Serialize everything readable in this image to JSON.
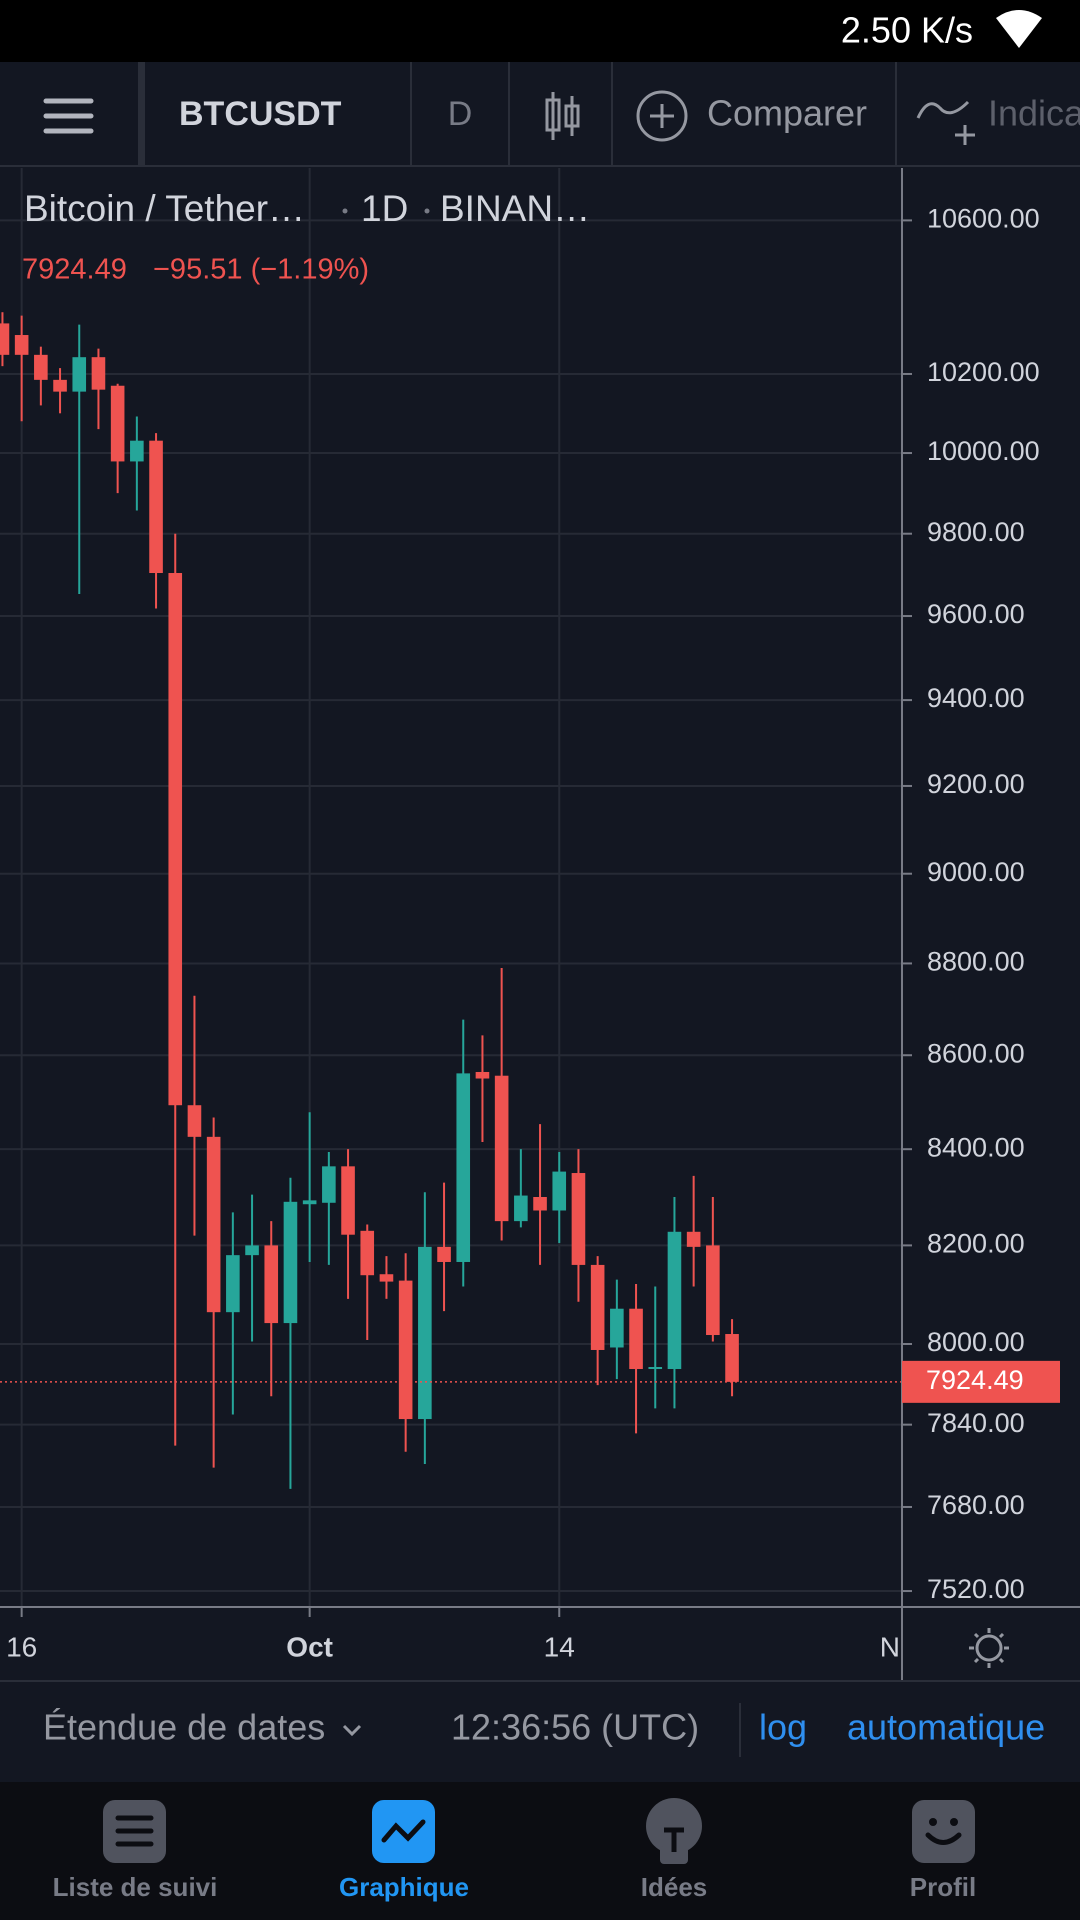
{
  "status_bar": {
    "speed": "2.50 K/s"
  },
  "toolbar": {
    "symbol": "BTCUSDT",
    "interval": "D",
    "compare": "Comparer",
    "indicators": "Indica"
  },
  "legend": {
    "name": "Bitcoin / Tether…",
    "interval": "1D",
    "exchange": "BINAN…",
    "change": "−95.51 (−1.19%)"
  },
  "chart_data": {
    "type": "candlestick",
    "x": [
      "Sep 15",
      "Sep 16",
      "Sep 17",
      "Sep 18",
      "Sep 19",
      "Sep 20",
      "Sep 21",
      "Sep 22",
      "Sep 23",
      "Sep 24",
      "Sep 25",
      "Sep 26",
      "Sep 27",
      "Sep 28",
      "Sep 29",
      "Sep 30",
      "Oct 1",
      "Oct 2",
      "Oct 3",
      "Oct 4",
      "Oct 5",
      "Oct 6",
      "Oct 7",
      "Oct 8",
      "Oct 9",
      "Oct 10",
      "Oct 11",
      "Oct 12",
      "Oct 13",
      "Oct 14",
      "Oct 15",
      "Oct 16",
      "Oct 17",
      "Oct 18",
      "Oct 19",
      "Oct 20",
      "Oct 21",
      "Oct 22",
      "Oct 23"
    ],
    "open": [
      10330,
      10300,
      10249,
      10185,
      10155,
      10243,
      10170,
      9979,
      10031,
      9704,
      8493,
      8426,
      8064,
      8180,
      8200,
      8042,
      8285,
      8288,
      8364,
      8230,
      8141,
      8128,
      7851,
      8197,
      8166,
      8564,
      8556,
      8250,
      8300,
      8272,
      8350,
      8160,
      7993,
      8071,
      7950,
      7950,
      8228,
      8200,
      8020
    ],
    "high": [
      10359,
      10350,
      10270,
      10215,
      10327,
      10265,
      10175,
      10092,
      10050,
      9800,
      8729,
      8467,
      8268,
      8305,
      8250,
      8340,
      8478,
      8394,
      8400,
      8243,
      8178,
      8184,
      8310,
      8330,
      8677,
      8643,
      8790,
      8400,
      8453,
      8394,
      8400,
      8178,
      8130,
      8121,
      8116,
      8300,
      8344,
      8300,
      8050
    ],
    "low": [
      10220,
      10080,
      10120,
      10100,
      9653,
      10060,
      9900,
      9857,
      9618,
      7799,
      8220,
      7756,
      7860,
      8005,
      7896,
      7715,
      8166,
      8160,
      8091,
      8008,
      8091,
      7787,
      7763,
      8066,
      8116,
      8415,
      8210,
      8237,
      8160,
      8205,
      8085,
      7918,
      7930,
      7823,
      7872,
      7872,
      8116,
      8005,
      7896
    ],
    "close": [
      10249,
      10249,
      10185,
      10155,
      10243,
      10160,
      9979,
      10031,
      9704,
      8493,
      8426,
      8064,
      8180,
      8200,
      8042,
      8290,
      8293,
      8364,
      8222,
      8139,
      8126,
      7851,
      8197,
      8166,
      8561,
      8550,
      8250,
      8303,
      8272,
      8353,
      8160,
      7988,
      8071,
      7950,
      7954,
      8228,
      8197,
      8018,
      7924.49
    ],
    "up_color": "#26a69a",
    "down_color": "#ef5350",
    "last_price": 7924.49,
    "log_scale": true,
    "grid": true,
    "ylim": [
      7490,
      10740
    ],
    "yticks": [
      {
        "value": 7520,
        "label": "7520.00"
      },
      {
        "value": 7680,
        "label": "7680.00"
      },
      {
        "value": 7840,
        "label": "7840.00"
      },
      {
        "value": 8000,
        "label": "8000.00"
      },
      {
        "value": 8200,
        "label": "8200.00"
      },
      {
        "value": 8400,
        "label": "8400.00"
      },
      {
        "value": 8600,
        "label": "8600.00"
      },
      {
        "value": 8800,
        "label": "8800.00"
      },
      {
        "value": 9000,
        "label": "9000.00"
      },
      {
        "value": 9200,
        "label": "9200.00"
      },
      {
        "value": 9400,
        "label": "9400.00"
      },
      {
        "value": 9600,
        "label": "9600.00"
      },
      {
        "value": 9800,
        "label": "9800.00"
      },
      {
        "value": 10000,
        "label": "10000.00"
      },
      {
        "value": 10200,
        "label": "10200.00"
      },
      {
        "value": 10600,
        "label": "10600.00"
      }
    ],
    "xticks": [
      {
        "value": "Sep 16",
        "label": "16"
      },
      {
        "value": "Oct 1",
        "label": "Oct"
      },
      {
        "value": "Oct 14",
        "label": "14"
      },
      {
        "value": "Nov 1",
        "label": "N"
      }
    ]
  },
  "footer": {
    "date_range": "Étendue de dates",
    "time": "12:36:56 (UTC)",
    "log": "log",
    "auto": "automatique"
  },
  "nav": [
    "Liste de suivi",
    "Graphique",
    "Idées",
    "Profil"
  ]
}
